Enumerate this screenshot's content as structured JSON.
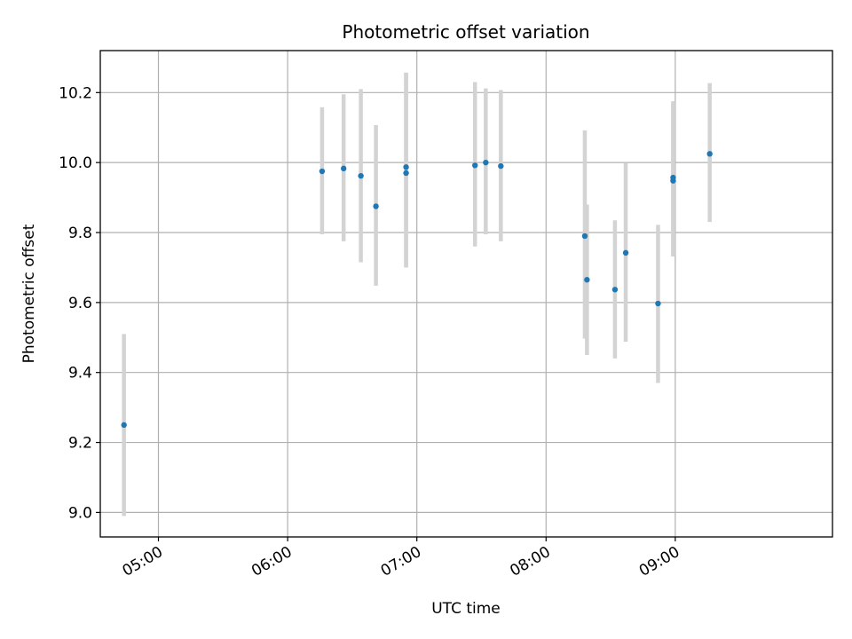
{
  "chart_data": {
    "type": "scatter",
    "title": "Photometric offset variation",
    "xlabel": "UTC time",
    "ylabel": "Photometric offset",
    "grid": true,
    "xlim": [
      "04:33",
      "10:13"
    ],
    "ylim": [
      8.93,
      10.32
    ],
    "x_ticks": [
      "05:00",
      "06:00",
      "07:00",
      "08:00",
      "09:00"
    ],
    "y_ticks": [
      "9.0",
      "9.2",
      "9.4",
      "9.6",
      "9.8",
      "10.0",
      "10.2"
    ],
    "colors": {
      "marker": "#1f77b4",
      "errorbar": "#d3d3d3",
      "grid": "#b0b0b0"
    },
    "series": [
      {
        "x": [
          "04:44",
          "06:16",
          "06:26",
          "06:34",
          "06:41",
          "06:55",
          "06:55",
          "07:27",
          "07:32",
          "07:39",
          "08:18",
          "08:19",
          "08:32",
          "08:37",
          "08:52",
          "08:59",
          "08:59",
          "09:16"
        ],
        "y": [
          9.25,
          9.975,
          9.983,
          9.962,
          9.875,
          9.97,
          9.987,
          9.992,
          10.0,
          9.99,
          9.79,
          9.665,
          9.637,
          9.742,
          9.597,
          9.948,
          9.957,
          10.025
        ],
        "yerr_low": [
          8.99,
          9.795,
          9.775,
          9.715,
          9.648,
          9.7,
          9.7,
          9.76,
          9.795,
          9.775,
          9.497,
          9.45,
          9.44,
          9.488,
          9.37,
          9.732,
          9.732,
          9.83
        ],
        "yerr_high": [
          9.51,
          10.158,
          10.195,
          10.21,
          10.107,
          10.257,
          10.257,
          10.23,
          10.212,
          10.207,
          10.092,
          9.88,
          9.835,
          9.998,
          9.822,
          10.17,
          10.175,
          10.227
        ]
      }
    ]
  }
}
